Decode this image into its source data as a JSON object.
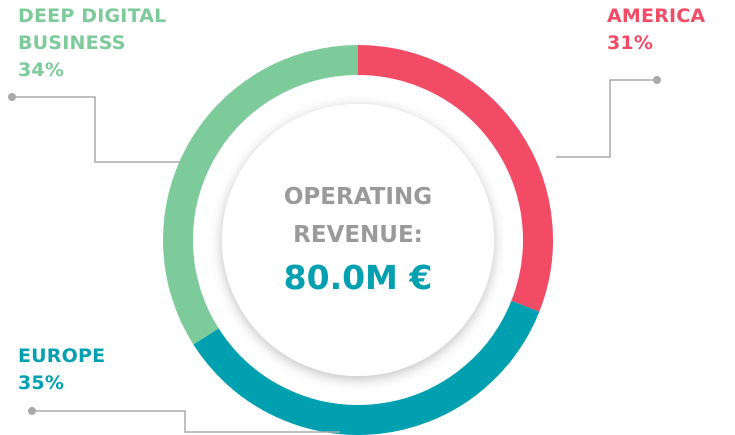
{
  "chart_data": {
    "type": "donut",
    "title": "OPERATING REVENUE:",
    "annotation": "80.0M €",
    "categories": [
      "AMERICA",
      "EUROPE",
      "DEEP DIGITAL BUSINESS"
    ],
    "values": [
      31,
      35,
      34
    ],
    "value_labels": [
      "31%",
      "35%",
      "34%"
    ],
    "colors": [
      "#f24b65",
      "#00a0b0",
      "#7dcb9a"
    ]
  }
}
